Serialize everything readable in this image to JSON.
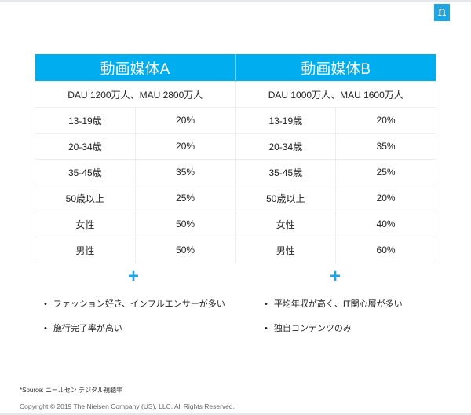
{
  "logo": "n",
  "media": [
    {
      "title": "動画媒体A",
      "summary": "DAU 1200万人、MAU 2800万人",
      "rows": [
        [
          "13-19歳",
          "20%"
        ],
        [
          "20-34歳",
          "20%"
        ],
        [
          "35-45歳",
          "35%"
        ],
        [
          "50歳以上",
          "25%"
        ],
        [
          "女性",
          "50%"
        ],
        [
          "男性",
          "50%"
        ]
      ],
      "plus": "+",
      "bullets": [
        "ファッション好き、インフルエンサーが多い",
        "施行完了率が高い"
      ]
    },
    {
      "title": "動画媒体B",
      "summary": "DAU 1000万人、MAU 1600万人",
      "rows": [
        [
          "13-19歳",
          "20%"
        ],
        [
          "20-34歳",
          "35%"
        ],
        [
          "35-45歳",
          "25%"
        ],
        [
          "50歳以上",
          "20%"
        ],
        [
          "女性",
          "40%"
        ],
        [
          "男性",
          "60%"
        ]
      ],
      "plus": "+",
      "bullets": [
        "平均年収が高く、IT関心層が多い",
        "独自コンテンツのみ"
      ]
    }
  ],
  "footer": {
    "source": "*Source: ニールセン デジタル視聴率",
    "copyright": "Copyright © 2019 The Nielsen Company (US), LLC. All Rights Reserved."
  }
}
